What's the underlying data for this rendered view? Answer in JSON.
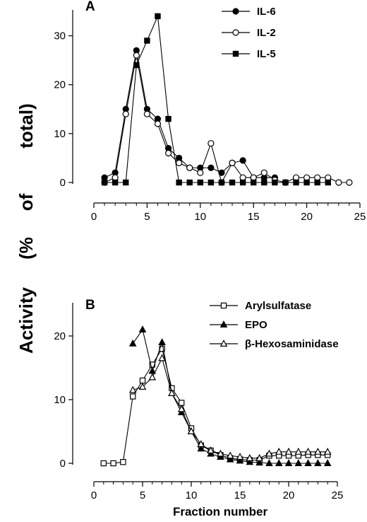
{
  "figure": {
    "ylabel_words": [
      "Activity",
      "(%",
      "of",
      "total)"
    ],
    "xlabel": "Fraction number"
  },
  "chart_data": [
    {
      "type": "line",
      "panel_label": "A",
      "xlim": [
        0,
        25
      ],
      "ylim": [
        0,
        35
      ],
      "xticks": [
        0,
        5,
        10,
        15,
        20,
        25
      ],
      "yticks": [
        0,
        10,
        20,
        30
      ],
      "legend_position": "top-right",
      "series": [
        {
          "name": "IL-6",
          "marker": "circle-filled",
          "x": [
            1,
            2,
            3,
            4,
            5,
            6,
            7,
            8,
            9,
            10,
            11,
            12,
            13,
            14,
            15,
            16,
            17
          ],
          "y": [
            1,
            2,
            15,
            27,
            15,
            13,
            7,
            5,
            3,
            3,
            3,
            2,
            4,
            4.5,
            1,
            1,
            1
          ]
        },
        {
          "name": "IL-2",
          "marker": "circle-open",
          "x": [
            1,
            2,
            3,
            4,
            5,
            6,
            7,
            8,
            9,
            10,
            11,
            12,
            13,
            14,
            15,
            16,
            17,
            18,
            19,
            20,
            21,
            22,
            23,
            24
          ],
          "y": [
            0,
            1,
            14,
            26,
            14,
            12,
            6,
            4,
            3,
            2,
            8,
            0,
            4,
            1,
            1,
            2,
            0.5,
            0,
            1,
            1,
            1,
            1,
            0,
            0
          ]
        },
        {
          "name": "IL-5",
          "marker": "square-filled",
          "x": [
            1,
            2,
            3,
            4,
            5,
            6,
            7,
            8,
            9,
            10,
            11,
            12,
            13,
            14,
            15,
            16,
            17,
            18,
            19,
            20,
            21,
            22
          ],
          "y": [
            0,
            0,
            0,
            24,
            29,
            34,
            13,
            0,
            0,
            0,
            0,
            0,
            0,
            0,
            0,
            0,
            0,
            0,
            0,
            0,
            0,
            0
          ]
        }
      ]
    },
    {
      "type": "line",
      "panel_label": "B",
      "xlim": [
        0,
        25
      ],
      "ylim": [
        0,
        25
      ],
      "xticks": [
        0,
        5,
        10,
        15,
        20,
        25
      ],
      "yticks": [
        0,
        10,
        20
      ],
      "legend_position": "top-right",
      "series": [
        {
          "name": "Arylsulfatase",
          "marker": "square-open",
          "x": [
            1,
            2,
            3,
            4,
            5,
            6,
            7,
            8,
            9,
            10,
            11,
            12,
            13,
            14,
            15,
            16,
            17,
            18,
            19,
            20,
            21,
            22,
            23,
            24
          ],
          "y": [
            0,
            0,
            0.2,
            10.5,
            13,
            15.5,
            18,
            11.8,
            9.5,
            5.5,
            2.8,
            2,
            1.3,
            0.8,
            0.6,
            0.5,
            0.5,
            1.2,
            1.2,
            1.2,
            1.2,
            1.3,
            1.3,
            1.3
          ]
        },
        {
          "name": "EPO",
          "marker": "triangle-filled",
          "x": [
            4,
            5,
            6,
            7,
            8,
            9,
            10,
            11,
            12,
            13,
            14,
            15,
            16,
            17,
            18,
            19,
            20,
            21,
            22,
            23,
            24
          ],
          "y": [
            18.8,
            21,
            14.5,
            19,
            11,
            8,
            5,
            2.3,
            1.5,
            1,
            0.6,
            0.4,
            0.2,
            0.1,
            0,
            0,
            0,
            0,
            0,
            0,
            0
          ]
        },
        {
          "name": "β-Hexosaminidase",
          "marker": "triangle-open",
          "x": [
            4,
            5,
            6,
            7,
            8,
            9,
            10,
            11,
            12,
            13,
            14,
            15,
            16,
            17,
            18,
            19,
            20,
            21,
            22,
            23,
            24
          ],
          "y": [
            11.5,
            12,
            13.5,
            16.5,
            11,
            8.5,
            5,
            3,
            2,
            1.5,
            1.2,
            1,
            0.8,
            0.8,
            1.5,
            1.8,
            1.8,
            1.8,
            1.8,
            1.8,
            1.8
          ]
        }
      ]
    }
  ]
}
